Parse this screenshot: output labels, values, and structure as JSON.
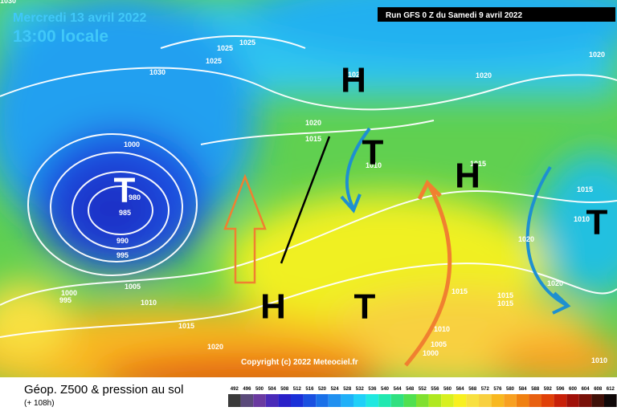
{
  "header": {
    "date": "Mercredi 13 avril 2022",
    "time": "13:00 locale",
    "run": "Run GFS 0 Z du Samedi 9 avril 2022"
  },
  "copyright": "Copyright (c) 2022 Meteociel.fr",
  "footer": {
    "title": "Géop. Z500 & pression au sol",
    "lead": "(+ 108h)"
  },
  "isobars": [
    1030,
    1025,
    1025,
    1025,
    1030,
    1020,
    1020,
    1020,
    1020,
    1015,
    1000,
    1010,
    1015,
    980,
    985,
    990,
    995,
    1015,
    1010,
    1020,
    1005,
    1000,
    995,
    1010,
    1020,
    1015,
    1015,
    1015,
    1015,
    1010,
    1005,
    1000,
    1020,
    1010
  ],
  "systems": [
    "H",
    "T",
    "H",
    "T",
    "T",
    "H",
    "T"
  ],
  "legend": {
    "labels": [
      492,
      496,
      500,
      504,
      508,
      512,
      516,
      520,
      524,
      528,
      532,
      536,
      540,
      544,
      548,
      552,
      556,
      560,
      564,
      568,
      572,
      576,
      580,
      584,
      588,
      592,
      596,
      600,
      604,
      608,
      612
    ],
    "colors": [
      "#3a3a3a",
      "#5a4a7a",
      "#6a3aa0",
      "#4a2ab8",
      "#2a20c8",
      "#1a30d8",
      "#1a50e0",
      "#1a70e8",
      "#2090f0",
      "#20b0f8",
      "#20d0f8",
      "#20e8e0",
      "#20e8b0",
      "#30e080",
      "#50e050",
      "#80e030",
      "#b0e820",
      "#d8f020",
      "#f8f020",
      "#f8e040",
      "#f8d040",
      "#f8b820",
      "#f8a020",
      "#f08010",
      "#e86010",
      "#e04008",
      "#c82008",
      "#a01008",
      "#781008",
      "#401008",
      "#100808"
    ]
  }
}
